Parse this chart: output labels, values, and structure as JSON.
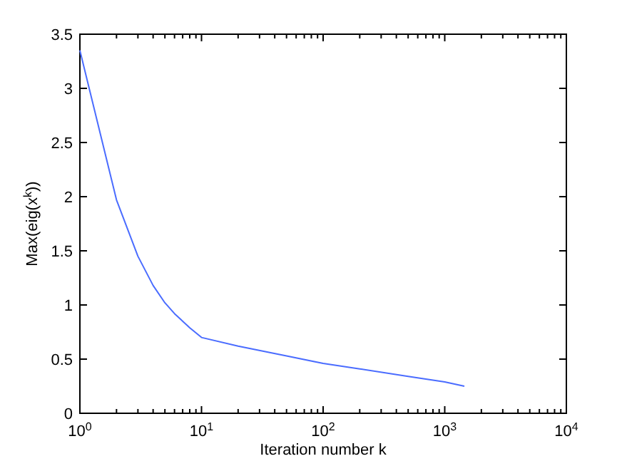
{
  "chart_data": {
    "type": "line",
    "xlabel": "Iteration number k",
    "ylabel": "Max(eig(x$^{k}$))",
    "log": "x",
    "x": [
      1,
      2,
      3,
      4,
      5,
      6,
      8,
      10,
      20,
      50,
      100,
      200,
      500,
      1000,
      1450
    ],
    "series": [
      {
        "color": "#4a6cff",
        "values": [
          3.35,
          1.97,
          1.45,
          1.18,
          1.02,
          0.92,
          0.79,
          0.7,
          0.62,
          0.53,
          0.46,
          0.41,
          0.34,
          0.29,
          0.25
        ]
      }
    ],
    "xlim": [
      1,
      10000
    ],
    "xticks": [
      {
        "value": 1,
        "label": "10$^{0}$"
      },
      {
        "value": 10,
        "label": "10$^{1}$"
      },
      {
        "value": 100,
        "label": "10$^{2}$"
      },
      {
        "value": 1000,
        "label": "10$^{3}$"
      },
      {
        "value": 10000,
        "label": "10$^{4}$"
      }
    ],
    "ylim": [
      0,
      3.5
    ],
    "yticks": [
      0,
      0.5,
      1,
      1.5,
      2,
      2.5,
      3,
      3.5
    ],
    "grid": false,
    "marker": "none",
    "line_style": "solid"
  }
}
